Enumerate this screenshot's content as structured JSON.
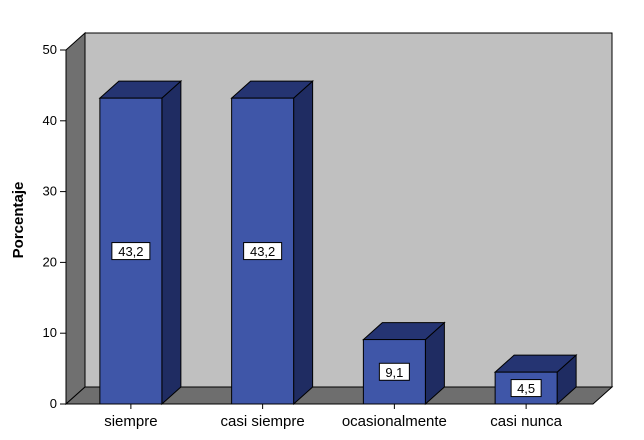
{
  "chart_data": {
    "type": "bar",
    "style": "3d",
    "categories": [
      "siempre",
      "casi siempre",
      "ocasionalmente",
      "casi nunca"
    ],
    "values": [
      43.2,
      43.2,
      9.1,
      4.5
    ],
    "value_labels": [
      "43,2",
      "43,2",
      "9,1",
      "4,5"
    ],
    "title": "",
    "xlabel": "",
    "ylabel": "Porcentaje",
    "ylim": [
      0,
      50
    ],
    "yticks": [
      "0",
      "10",
      "20",
      "30",
      "40",
      "50"
    ],
    "grid": false,
    "legend": "none",
    "colors": {
      "bar_front": "#3F56A8",
      "bar_top": "#253472",
      "bar_side": "#1F2C62",
      "plot_back": "#C0C0C0",
      "plot_left": "#707070",
      "plot_floor": "#6E6E6E"
    }
  }
}
